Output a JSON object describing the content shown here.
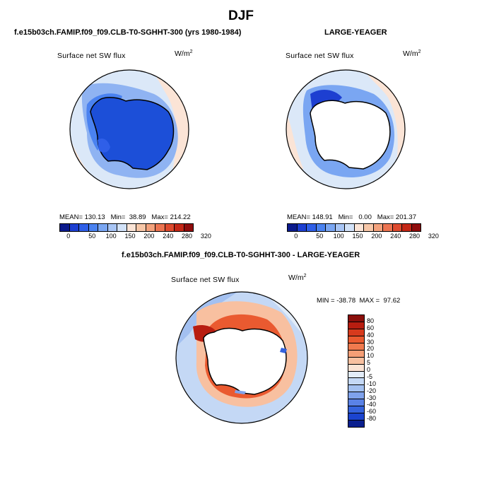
{
  "main_title": "DJF",
  "panel_left": {
    "title": "f.e15b03ch.FAMIP.f09_f09.CLB-T0-SGHHT-300 (yrs 1980-1984)",
    "subtitle": "Surface net SW flux",
    "units": "W/m",
    "units_exp": "2",
    "stats": "MEAN= 130.13   Min=  38.89   Max= 214.22"
  },
  "panel_right": {
    "title": "LARGE-YEAGER",
    "subtitle": "Surface net SW flux",
    "units": "W/m",
    "units_exp": "2",
    "stats": "MEAN= 148.91   Min=   0.00   Max= 201.37"
  },
  "colorbar_top": {
    "ticks": [
      "0",
      "50",
      "100",
      "150",
      "200",
      "240",
      "280",
      "320"
    ],
    "colors": [
      "#0b1a8c",
      "#1d3fd1",
      "#2f5fe8",
      "#4a82f0",
      "#7aa6f2",
      "#a8c5f5",
      "#d2e2f8",
      "#fbe4d6",
      "#f7c7a8",
      "#f3a27d",
      "#ec7451",
      "#de4a2e",
      "#c42716",
      "#8f0c0c"
    ]
  },
  "panel_diff": {
    "title": "f.e15b03ch.FAMIP.f09_f09.CLB-T0-SGHHT-300 - LARGE-YEAGER",
    "subtitle": "Surface net SW flux",
    "units": "W/m",
    "units_exp": "2",
    "stats": "MIN = -38.78  MAX =  97.62"
  },
  "colorbar_diff": {
    "ticks": [
      "80",
      "60",
      "40",
      "30",
      "20",
      "10",
      "5",
      "0",
      "-5",
      "-10",
      "-20",
      "-30",
      "-40",
      "-60",
      "-80"
    ],
    "colors": [
      "#8a0f0b",
      "#b81d10",
      "#d73a1d",
      "#ea5a30",
      "#f07a4e",
      "#f49e76",
      "#f8c0a0",
      "#fbe3d4",
      "#e2ecf8",
      "#c4d8f5",
      "#a3c0f0",
      "#7fa2ec",
      "#5a82e6",
      "#3563dd",
      "#1b44cf",
      "#0a1f8e"
    ]
  },
  "colors": {
    "ocean_light": "#dbe8f8",
    "ice_blue": "#1c4fd8",
    "warm": "#fbe4d6",
    "land": "#ffffff"
  }
}
